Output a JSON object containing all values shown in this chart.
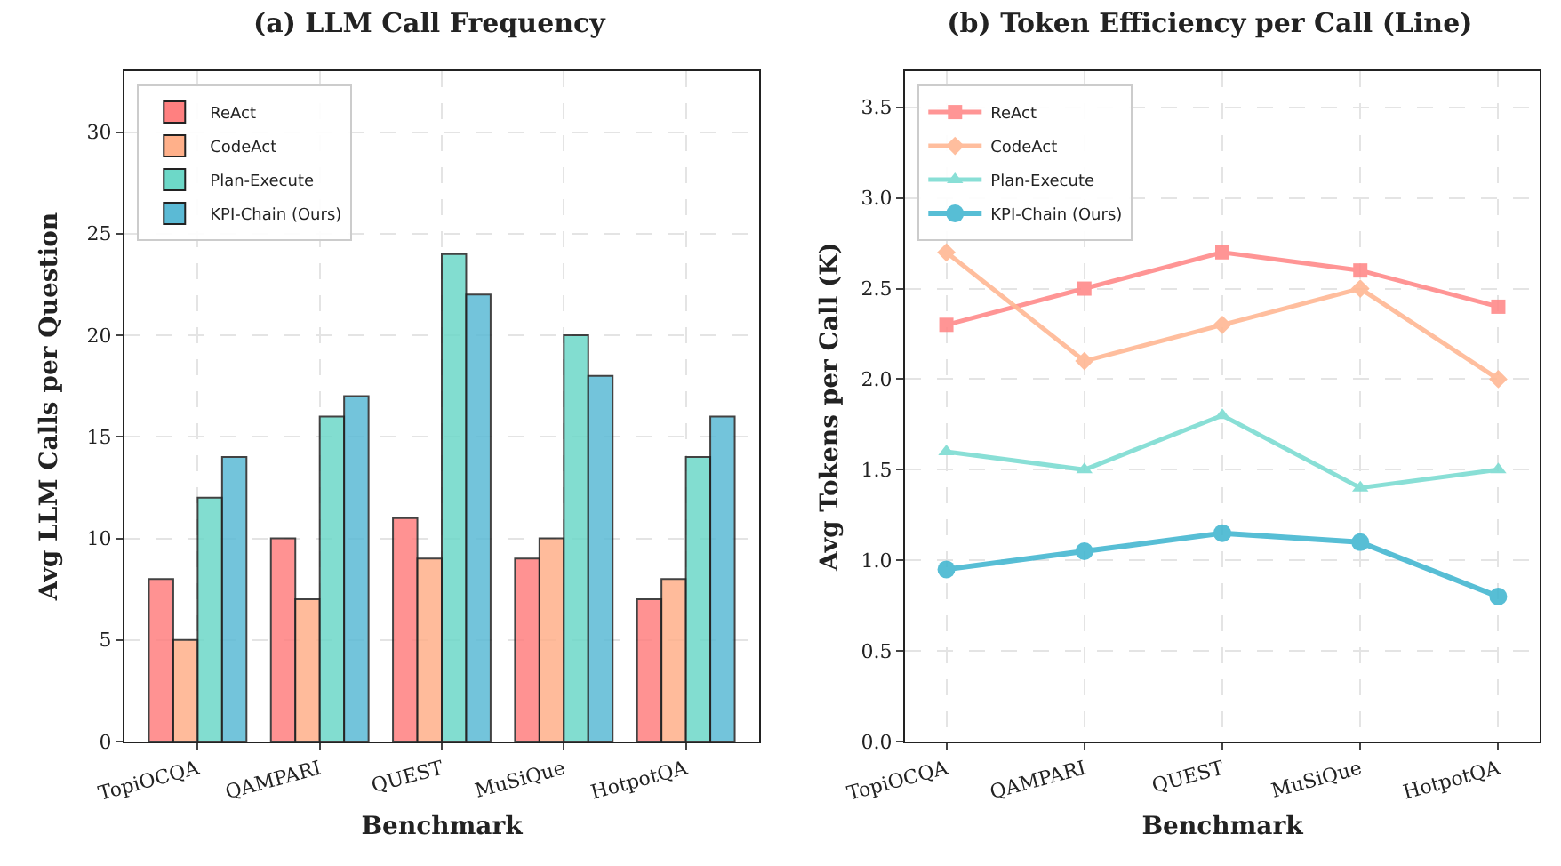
{
  "chart_data": [
    {
      "type": "bar",
      "title": "(a) LLM Call Frequency",
      "xlabel": "Benchmark",
      "ylabel": "Avg LLM Calls per Question",
      "categories": [
        "TopiOCQA",
        "QAMPARI",
        "QUEST",
        "MuSiQue",
        "HotpotQA"
      ],
      "series": [
        {
          "name": "ReAct",
          "color": "#ff8080",
          "values": [
            8,
            10,
            11,
            9,
            7
          ]
        },
        {
          "name": "CodeAct",
          "color": "#ffb08a",
          "values": [
            5,
            7,
            9,
            10,
            8
          ]
        },
        {
          "name": "Plan-Execute",
          "color": "#6dd8c8",
          "values": [
            12,
            16,
            24,
            20,
            14
          ]
        },
        {
          "name": "KPI-Chain (Ours)",
          "color": "#5bbad5",
          "values": [
            14,
            17,
            22,
            18,
            16
          ]
        }
      ],
      "ylim": [
        0,
        33
      ],
      "yticks": [
        0,
        5,
        10,
        15,
        20,
        25,
        30
      ],
      "grid": true,
      "legend": "top left"
    },
    {
      "type": "line",
      "title": "(b) Token Efficiency per Call (Line)",
      "xlabel": "Benchmark",
      "ylabel": "Avg Tokens per Call (K)",
      "categories": [
        "TopiOCQA",
        "QAMPARI",
        "QUEST",
        "MuSiQue",
        "HotpotQA"
      ],
      "series": [
        {
          "name": "ReAct",
          "color": "#ff8a8a",
          "marker": "square",
          "values": [
            2.3,
            2.5,
            2.7,
            2.6,
            2.4
          ]
        },
        {
          "name": "CodeAct",
          "color": "#ffb894",
          "marker": "diamond",
          "values": [
            2.7,
            2.1,
            2.3,
            2.5,
            2.0
          ]
        },
        {
          "name": "Plan-Execute",
          "color": "#7ddcd2",
          "marker": "triangle",
          "values": [
            1.6,
            1.5,
            1.8,
            1.4,
            1.5
          ]
        },
        {
          "name": "KPI-Chain (Ours)",
          "color": "#45b7d1",
          "marker": "circle",
          "values": [
            0.95,
            1.05,
            1.15,
            1.1,
            0.8
          ]
        }
      ],
      "ylim": [
        0,
        3.7
      ],
      "yticks": [
        {
          "value": 0,
          "label": "0.0"
        },
        0.5,
        {
          "value": 1,
          "label": "1.0"
        },
        1.5,
        {
          "value": 2,
          "label": "2.0"
        },
        2.5,
        {
          "value": 3,
          "label": "3.0"
        },
        3.5
      ],
      "grid": true,
      "legend": "top left",
      "line_style": "solid"
    }
  ]
}
